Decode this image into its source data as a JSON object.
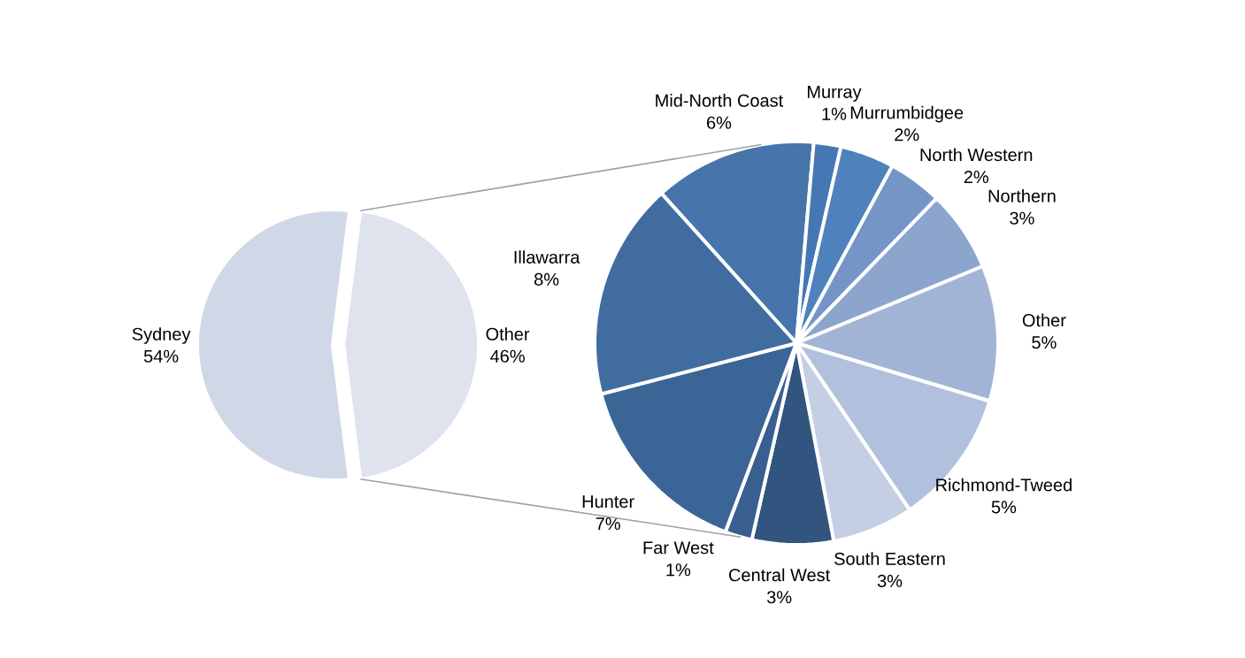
{
  "chart_data": [
    {
      "type": "pie",
      "categories": [
        "Sydney",
        "Other"
      ],
      "values": [
        54,
        46
      ],
      "value_labels": [
        "54%",
        "46%"
      ],
      "colors": [
        "#d0d8e7",
        "#dee3ee"
      ]
    },
    {
      "type": "pie",
      "categories": [
        "Mid-North Coast",
        "Murray",
        "Murrumbidgee",
        "North Western",
        "Northern",
        "Other",
        "Richmond-Tweed",
        "South Eastern",
        "Central West",
        "Far West",
        "Hunter",
        "Illawarra"
      ],
      "values": [
        6,
        1,
        2,
        2,
        3,
        5,
        5,
        3,
        3,
        1,
        7,
        8
      ],
      "value_labels": [
        "6%",
        "1%",
        "2%",
        "2%",
        "3%",
        "5%",
        "5%",
        "3%",
        "3%",
        "1%",
        "7%",
        "8%"
      ],
      "colors": [
        "#4674ab",
        "#4677b4",
        "#4f81bd",
        "#7595c6",
        "#8ca5cd",
        "#a2b4d6",
        "#b1c1dd",
        "#c5cfe3",
        "#31557e",
        "#395f91",
        "#3c6597",
        "#416c9f"
      ]
    }
  ]
}
